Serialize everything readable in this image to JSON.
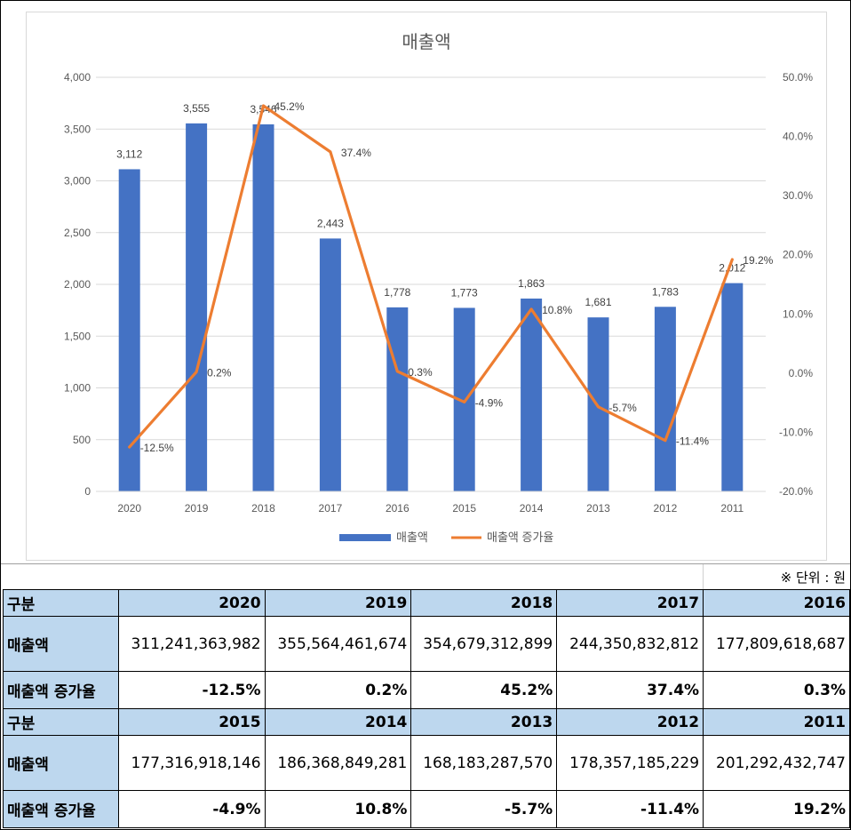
{
  "chart_data": {
    "type": "bar",
    "title": "매출액",
    "categories": [
      "2020",
      "2019",
      "2018",
      "2017",
      "2016",
      "2015",
      "2014",
      "2013",
      "2012",
      "2011"
    ],
    "series": [
      {
        "name": "매출액",
        "type": "bar",
        "axis": "left",
        "values": [
          3112,
          3555,
          3546,
          2443,
          1778,
          1773,
          1863,
          1681,
          1783,
          2012
        ],
        "labels": [
          "3,112",
          "3,555",
          "3,546",
          "2,443",
          "1,778",
          "1,773",
          "1,863",
          "1,681",
          "1,783",
          "2,012"
        ]
      },
      {
        "name": "매출액 증가율",
        "type": "line",
        "axis": "right",
        "values": [
          -12.5,
          0.2,
          45.2,
          37.4,
          0.3,
          -4.9,
          10.8,
          -5.7,
          -11.4,
          19.2
        ],
        "labels": [
          "-12.5%",
          "0.2%",
          "45.2%",
          "37.4%",
          "0.3%",
          "-4.9%",
          "10.8%",
          "-5.7%",
          "-11.4%",
          "19.2%"
        ]
      }
    ],
    "ylim": [
      0,
      4000
    ],
    "yticks": [
      0,
      500,
      1000,
      1500,
      2000,
      2500,
      3000,
      3500,
      4000
    ],
    "ytick_labels": [
      "0",
      "500",
      "1,000",
      "1,500",
      "2,000",
      "2,500",
      "3,000",
      "3,500",
      "4,000"
    ],
    "y2lim": [
      -20,
      50
    ],
    "y2ticks": [
      -20,
      -10,
      0,
      10,
      20,
      30,
      40,
      50
    ],
    "y2tick_labels": [
      "-20.0%",
      "-10.0%",
      "0.0%",
      "10.0%",
      "20.0%",
      "30.0%",
      "40.0%",
      "50.0%"
    ],
    "grid": true,
    "legend": "bottom",
    "colors": {
      "bar": "#4472c4",
      "line": "#ed7d31"
    }
  },
  "unit_note": "※ 단위 : 원",
  "table": {
    "blocks": [
      {
        "header_label": "구분",
        "years": [
          "2020",
          "2019",
          "2018",
          "2017",
          "2016"
        ],
        "revenue_label": "매출액",
        "revenue": [
          "311,241,363,982",
          "355,564,461,674",
          "354,679,312,899",
          "244,350,832,812",
          "177,809,618,687"
        ],
        "growth_label": "매출액 증가율",
        "growth": [
          "-12.5%",
          "0.2%",
          "45.2%",
          "37.4%",
          "0.3%"
        ]
      },
      {
        "header_label": "구분",
        "years": [
          "2015",
          "2014",
          "2013",
          "2012",
          "2011"
        ],
        "revenue_label": "매출액",
        "revenue": [
          "177,316,918,146",
          "186,368,849,281",
          "168,183,287,570",
          "178,357,185,229",
          "201,292,432,747"
        ],
        "growth_label": "매출액 증가율",
        "growth": [
          "-4.9%",
          "10.8%",
          "-5.7%",
          "-11.4%",
          "19.2%"
        ]
      }
    ]
  }
}
